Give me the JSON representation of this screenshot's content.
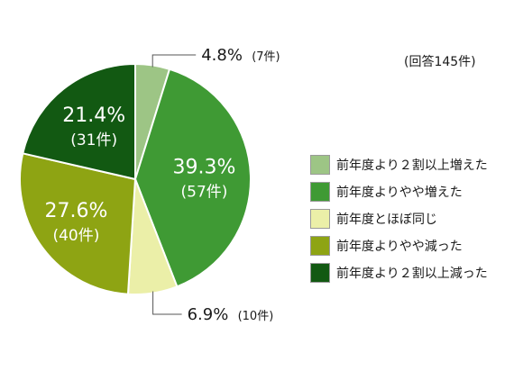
{
  "chart_data": {
    "type": "pie",
    "title": "",
    "note": "(回答145件)",
    "slices": [
      {
        "label": "前年度より２割以上増えた",
        "percent": 4.8,
        "count": 7,
        "percent_text": "4.8%",
        "count_text": "(7件)",
        "color": "#9dc585"
      },
      {
        "label": "前年度よりやや増えた",
        "percent": 39.3,
        "count": 57,
        "percent_text": "39.3%",
        "count_text": "(57件)",
        "color": "#3f9a34"
      },
      {
        "label": "前年度とほぼ同じ",
        "percent": 6.9,
        "count": 10,
        "percent_text": "6.9%",
        "count_text": "(10件)",
        "color": "#ebefa8"
      },
      {
        "label": "前年度よりやや減った",
        "percent": 27.6,
        "count": 40,
        "percent_text": "27.6%",
        "count_text": "(40件)",
        "color": "#8ea413"
      },
      {
        "label": "前年度より２割以上減った",
        "percent": 21.4,
        "count": 31,
        "percent_text": "21.4%",
        "count_text": "(31件)",
        "color": "#125912"
      }
    ],
    "legend_position": "right"
  }
}
